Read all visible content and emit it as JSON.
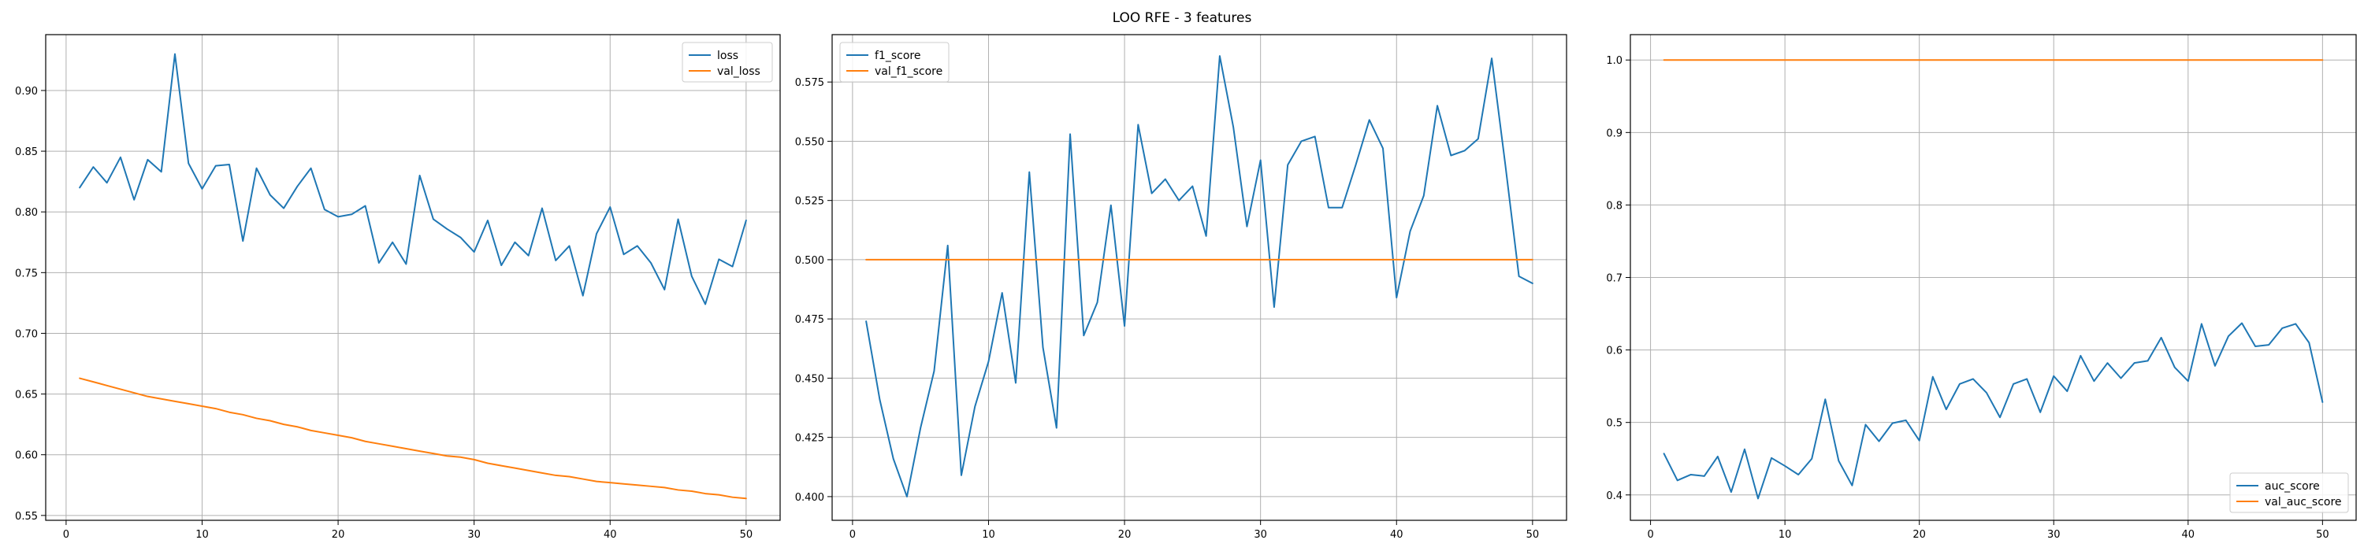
{
  "figure": {
    "title": "LOO RFE - 3 features"
  },
  "colors": {
    "blue": "#1f77b4",
    "orange": "#ff7f0e"
  },
  "chart_data": [
    {
      "type": "line",
      "title": "",
      "xlabel": "",
      "ylabel": "",
      "xlim": [
        -1.5,
        52.5
      ],
      "ylim": [
        0.546,
        0.946
      ],
      "xticks": [
        0,
        10,
        20,
        30,
        40,
        50
      ],
      "yticks": [
        0.55,
        0.6,
        0.65,
        0.7,
        0.75,
        0.8,
        0.85,
        0.9
      ],
      "ytick_labels": [
        "0.55",
        "0.60",
        "0.65",
        "0.70",
        "0.75",
        "0.80",
        "0.85",
        "0.90"
      ],
      "grid": true,
      "legend_position": "upper right",
      "x": [
        1,
        2,
        3,
        4,
        5,
        6,
        7,
        8,
        9,
        10,
        11,
        12,
        13,
        14,
        15,
        16,
        17,
        18,
        19,
        20,
        21,
        22,
        23,
        24,
        25,
        26,
        27,
        28,
        29,
        30,
        31,
        32,
        33,
        34,
        35,
        36,
        37,
        38,
        39,
        40,
        41,
        42,
        43,
        44,
        45,
        46,
        47,
        48,
        49,
        50
      ],
      "series": [
        {
          "name": "loss",
          "color": "#1f77b4",
          "values": [
            0.82,
            0.837,
            0.824,
            0.845,
            0.81,
            0.843,
            0.833,
            0.93,
            0.84,
            0.819,
            0.838,
            0.839,
            0.776,
            0.836,
            0.814,
            0.803,
            0.821,
            0.836,
            0.802,
            0.796,
            0.798,
            0.805,
            0.758,
            0.775,
            0.757,
            0.83,
            0.794,
            0.786,
            0.779,
            0.767,
            0.793,
            0.756,
            0.775,
            0.764,
            0.803,
            0.76,
            0.772,
            0.731,
            0.782,
            0.804,
            0.765,
            0.772,
            0.758,
            0.736,
            0.794,
            0.747,
            0.724,
            0.761,
            0.755,
            0.793
          ]
        },
        {
          "name": "val_loss",
          "color": "#ff7f0e",
          "values": [
            0.663,
            0.66,
            0.657,
            0.654,
            0.651,
            0.648,
            0.646,
            0.644,
            0.642,
            0.64,
            0.638,
            0.635,
            0.633,
            0.63,
            0.628,
            0.625,
            0.623,
            0.62,
            0.618,
            0.616,
            0.614,
            0.611,
            0.609,
            0.607,
            0.605,
            0.603,
            0.601,
            0.599,
            0.598,
            0.596,
            0.593,
            0.591,
            0.589,
            0.587,
            0.585,
            0.583,
            0.582,
            0.58,
            0.578,
            0.577,
            0.576,
            0.575,
            0.574,
            0.573,
            0.571,
            0.57,
            0.568,
            0.567,
            0.565,
            0.564
          ]
        }
      ]
    },
    {
      "type": "line",
      "title": "",
      "xlabel": "",
      "ylabel": "",
      "xlim": [
        -1.5,
        52.5
      ],
      "ylim": [
        0.39,
        0.595
      ],
      "xticks": [
        0,
        10,
        20,
        30,
        40,
        50
      ],
      "yticks": [
        0.4,
        0.425,
        0.45,
        0.475,
        0.5,
        0.525,
        0.55,
        0.575
      ],
      "ytick_labels": [
        "0.400",
        "0.425",
        "0.450",
        "0.475",
        "0.500",
        "0.525",
        "0.550",
        "0.575"
      ],
      "grid": true,
      "legend_position": "upper left",
      "x": [
        1,
        2,
        3,
        4,
        5,
        6,
        7,
        8,
        9,
        10,
        11,
        12,
        13,
        14,
        15,
        16,
        17,
        18,
        19,
        20,
        21,
        22,
        23,
        24,
        25,
        26,
        27,
        28,
        29,
        30,
        31,
        32,
        33,
        34,
        35,
        36,
        37,
        38,
        39,
        40,
        41,
        42,
        43,
        44,
        45,
        46,
        47,
        48,
        49,
        50
      ],
      "series": [
        {
          "name": "f1_score",
          "color": "#1f77b4",
          "values": [
            0.474,
            0.441,
            0.416,
            0.4,
            0.429,
            0.453,
            0.506,
            0.409,
            0.438,
            0.457,
            0.486,
            0.448,
            0.537,
            0.463,
            0.429,
            0.553,
            0.468,
            0.482,
            0.523,
            0.472,
            0.557,
            0.528,
            0.534,
            0.525,
            0.531,
            0.51,
            0.586,
            0.556,
            0.514,
            0.542,
            0.48,
            0.54,
            0.55,
            0.552,
            0.522,
            0.522,
            0.54,
            0.559,
            0.547,
            0.484,
            0.512,
            0.527,
            0.565,
            0.544,
            0.546,
            0.551,
            0.585,
            0.54,
            0.493,
            0.49
          ]
        },
        {
          "name": "val_f1_score",
          "color": "#ff7f0e",
          "values": [
            0.5,
            0.5,
            0.5,
            0.5,
            0.5,
            0.5,
            0.5,
            0.5,
            0.5,
            0.5,
            0.5,
            0.5,
            0.5,
            0.5,
            0.5,
            0.5,
            0.5,
            0.5,
            0.5,
            0.5,
            0.5,
            0.5,
            0.5,
            0.5,
            0.5,
            0.5,
            0.5,
            0.5,
            0.5,
            0.5,
            0.5,
            0.5,
            0.5,
            0.5,
            0.5,
            0.5,
            0.5,
            0.5,
            0.5,
            0.5,
            0.5,
            0.5,
            0.5,
            0.5,
            0.5,
            0.5,
            0.5,
            0.5,
            0.5,
            0.5
          ]
        }
      ]
    },
    {
      "type": "line",
      "title": "",
      "xlabel": "",
      "ylabel": "",
      "xlim": [
        -1.5,
        52.5
      ],
      "ylim": [
        0.365,
        1.035
      ],
      "xticks": [
        0,
        10,
        20,
        30,
        40,
        50
      ],
      "yticks": [
        0.4,
        0.5,
        0.6,
        0.7,
        0.8,
        0.9,
        1.0
      ],
      "ytick_labels": [
        "0.4",
        "0.5",
        "0.6",
        "0.7",
        "0.8",
        "0.9",
        "1.0"
      ],
      "grid": true,
      "legend_position": "lower right",
      "x": [
        1,
        2,
        3,
        4,
        5,
        6,
        7,
        8,
        9,
        10,
        11,
        12,
        13,
        14,
        15,
        16,
        17,
        18,
        19,
        20,
        21,
        22,
        23,
        24,
        25,
        26,
        27,
        28,
        29,
        30,
        31,
        32,
        33,
        34,
        35,
        36,
        37,
        38,
        39,
        40,
        41,
        42,
        43,
        44,
        45,
        46,
        47,
        48,
        49,
        50
      ],
      "series": [
        {
          "name": "auc_score",
          "color": "#1f77b4",
          "values": [
            0.457,
            0.42,
            0.428,
            0.426,
            0.453,
            0.404,
            0.463,
            0.395,
            0.451,
            0.44,
            0.428,
            0.45,
            0.532,
            0.447,
            0.413,
            0.497,
            0.474,
            0.499,
            0.503,
            0.475,
            0.563,
            0.518,
            0.553,
            0.56,
            0.541,
            0.507,
            0.553,
            0.56,
            0.514,
            0.564,
            0.543,
            0.592,
            0.557,
            0.582,
            0.561,
            0.582,
            0.585,
            0.617,
            0.576,
            0.557,
            0.636,
            0.578,
            0.619,
            0.637,
            0.605,
            0.607,
            0.63,
            0.636,
            0.61,
            0.528
          ]
        },
        {
          "name": "val_auc_score",
          "color": "#ff7f0e",
          "values": [
            1.0,
            1.0,
            1.0,
            1.0,
            1.0,
            1.0,
            1.0,
            1.0,
            1.0,
            1.0,
            1.0,
            1.0,
            1.0,
            1.0,
            1.0,
            1.0,
            1.0,
            1.0,
            1.0,
            1.0,
            1.0,
            1.0,
            1.0,
            1.0,
            1.0,
            1.0,
            1.0,
            1.0,
            1.0,
            1.0,
            1.0,
            1.0,
            1.0,
            1.0,
            1.0,
            1.0,
            1.0,
            1.0,
            1.0,
            1.0,
            1.0,
            1.0,
            1.0,
            1.0,
            1.0,
            1.0,
            1.0,
            1.0,
            1.0,
            1.0
          ]
        }
      ]
    }
  ]
}
